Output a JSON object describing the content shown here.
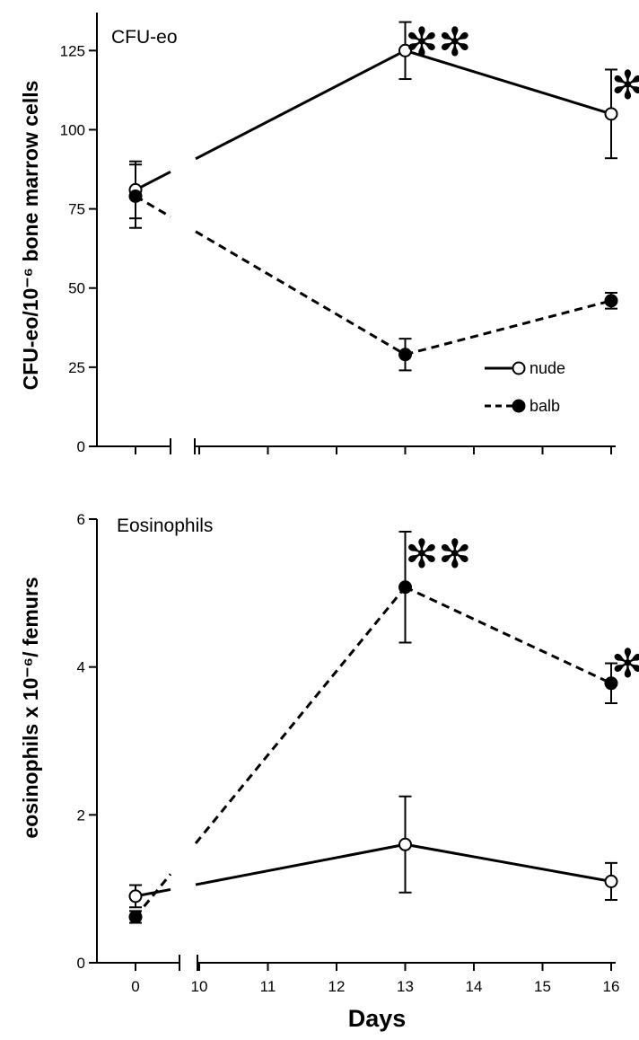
{
  "chart_data": [
    {
      "type": "line",
      "title": "CFU-eo",
      "xlabel": "",
      "ylabel": "CFU-eo/10⁻⁶ bone marrow cells",
      "ylim": [
        0,
        137
      ],
      "y_ticks": [
        "0",
        "25",
        "50",
        "75",
        "100",
        "125"
      ],
      "x_axis_break": "between 0 and 10",
      "legend_placement": "bottom-right",
      "series": [
        {
          "name": "nude",
          "marker": "open-circle",
          "line_style": "solid",
          "x": [
            0,
            13,
            16
          ],
          "values": [
            81,
            125,
            105
          ],
          "error": [
            9,
            9,
            14
          ]
        },
        {
          "name": "balb",
          "marker": "filled-circle",
          "line_style": "dashed",
          "x": [
            0,
            13,
            16
          ],
          "values": [
            79,
            29,
            46
          ],
          "error": [
            10,
            5,
            2.5
          ]
        }
      ],
      "annotations": [
        {
          "x": 13,
          "text": "✻✻"
        },
        {
          "x": 16,
          "text": "✻"
        }
      ]
    },
    {
      "type": "line",
      "title": "Eosinophils",
      "xlabel": "Days",
      "ylabel": "eosinophils x 10⁻⁶/ femurs",
      "ylim": [
        0,
        6
      ],
      "y_ticks": [
        "0",
        "2",
        "4",
        "6"
      ],
      "x_ticks": [
        "0",
        "10",
        "11",
        "12",
        "13",
        "14",
        "15",
        "16"
      ],
      "x_axis_break": "between 0 and 10",
      "series": [
        {
          "name": "nude",
          "marker": "open-circle",
          "line_style": "solid",
          "x": [
            0,
            13,
            16
          ],
          "values": [
            0.9,
            1.6,
            1.1
          ],
          "error": [
            0.15,
            0.65,
            0.25
          ]
        },
        {
          "name": "balb",
          "marker": "filled-circle",
          "line_style": "dashed",
          "x": [
            0,
            13,
            16
          ],
          "values": [
            0.62,
            5.08,
            3.78
          ],
          "error": [
            0.08,
            0.75,
            0.27
          ]
        }
      ],
      "annotations": [
        {
          "x": 13,
          "text": "✻✻"
        },
        {
          "x": 16,
          "text": "✻"
        }
      ]
    }
  ]
}
